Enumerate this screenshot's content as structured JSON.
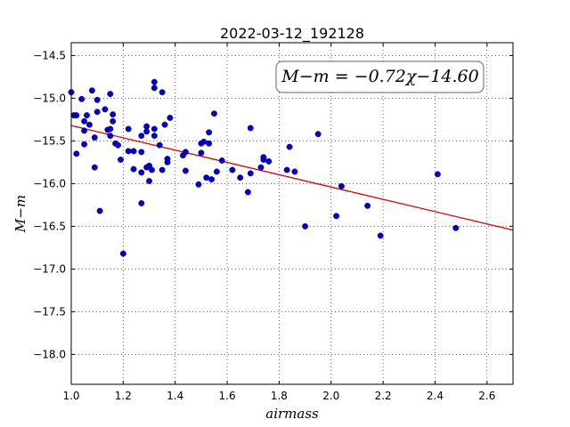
{
  "chart_data": {
    "type": "scatter",
    "title": "2022-03-12_192128",
    "xlabel": "airmass",
    "ylabel": "M−m",
    "xlim": [
      1.0,
      2.7
    ],
    "ylim": [
      -18.35,
      -14.35
    ],
    "y_inverted": true,
    "grid": true,
    "xticks": [
      1.0,
      1.2,
      1.4,
      1.6,
      1.8,
      2.0,
      2.2,
      2.4,
      2.6
    ],
    "xtick_labels": [
      "1.0",
      "1.2",
      "1.4",
      "1.6",
      "1.8",
      "2.0",
      "2.2",
      "2.4",
      "2.6"
    ],
    "yticks": [
      -14.5,
      -15.0,
      -15.5,
      -16.0,
      -16.5,
      -17.0,
      -17.5,
      -18.0
    ],
    "ytick_labels": [
      "−14.5",
      "−15.0",
      "−15.5",
      "−16.0",
      "−16.5",
      "−17.0",
      "−17.5",
      "−18.0"
    ],
    "annotation": "M−m = −0.72χ−14.60",
    "fit": {
      "slope": -0.72,
      "intercept": -14.6,
      "x_range": [
        1.0,
        2.7
      ],
      "color": "#dd0000"
    },
    "marker_color": "#0000cc",
    "points": [
      [
        1.0,
        -14.93
      ],
      [
        1.01,
        -15.2
      ],
      [
        1.02,
        -15.2
      ],
      [
        1.02,
        -15.65
      ],
      [
        1.04,
        -15.01
      ],
      [
        1.05,
        -15.27
      ],
      [
        1.05,
        -15.38
      ],
      [
        1.05,
        -15.54
      ],
      [
        1.06,
        -15.2
      ],
      [
        1.07,
        -15.31
      ],
      [
        1.08,
        -14.91
      ],
      [
        1.09,
        -15.81
      ],
      [
        1.09,
        -15.46
      ],
      [
        1.1,
        -15.02
      ],
      [
        1.1,
        -15.16
      ],
      [
        1.11,
        -16.32
      ],
      [
        1.13,
        -15.13
      ],
      [
        1.14,
        -15.37
      ],
      [
        1.15,
        -15.36
      ],
      [
        1.15,
        -15.44
      ],
      [
        1.15,
        -14.95
      ],
      [
        1.16,
        -15.19
      ],
      [
        1.16,
        -15.27
      ],
      [
        1.17,
        -15.53
      ],
      [
        1.18,
        -15.55
      ],
      [
        1.19,
        -15.72
      ],
      [
        1.2,
        -16.82
      ],
      [
        1.22,
        -15.36
      ],
      [
        1.22,
        -15.62
      ],
      [
        1.24,
        -15.62
      ],
      [
        1.24,
        -15.83
      ],
      [
        1.27,
        -15.44
      ],
      [
        1.27,
        -15.63
      ],
      [
        1.27,
        -15.87
      ],
      [
        1.27,
        -16.23
      ],
      [
        1.29,
        -15.33
      ],
      [
        1.29,
        -15.39
      ],
      [
        1.29,
        -15.81
      ],
      [
        1.3,
        -15.79
      ],
      [
        1.3,
        -15.97
      ],
      [
        1.31,
        -15.84
      ],
      [
        1.32,
        -14.81
      ],
      [
        1.32,
        -14.88
      ],
      [
        1.32,
        -15.36
      ],
      [
        1.32,
        -15.44
      ],
      [
        1.34,
        -15.55
      ],
      [
        1.35,
        -15.84
      ],
      [
        1.35,
        -14.93
      ],
      [
        1.36,
        -15.31
      ],
      [
        1.37,
        -15.75
      ],
      [
        1.37,
        -15.71
      ],
      [
        1.38,
        -15.23
      ],
      [
        1.43,
        -15.67
      ],
      [
        1.44,
        -15.63
      ],
      [
        1.44,
        -15.85
      ],
      [
        1.49,
        -16.01
      ],
      [
        1.5,
        -15.64
      ],
      [
        1.5,
        -15.53
      ],
      [
        1.51,
        -15.51
      ],
      [
        1.52,
        -15.93
      ],
      [
        1.53,
        -15.4
      ],
      [
        1.53,
        -15.53
      ],
      [
        1.54,
        -15.95
      ],
      [
        1.55,
        -15.18
      ],
      [
        1.56,
        -15.86
      ],
      [
        1.58,
        -15.73
      ],
      [
        1.62,
        -15.84
      ],
      [
        1.65,
        -15.93
      ],
      [
        1.68,
        -16.1
      ],
      [
        1.69,
        -15.88
      ],
      [
        1.69,
        -15.35
      ],
      [
        1.73,
        -15.81
      ],
      [
        1.74,
        -15.69
      ],
      [
        1.74,
        -15.72
      ],
      [
        1.76,
        -15.74
      ],
      [
        1.83,
        -15.84
      ],
      [
        1.84,
        -15.57
      ],
      [
        1.86,
        -15.86
      ],
      [
        1.9,
        -16.5
      ],
      [
        1.95,
        -15.42
      ],
      [
        2.02,
        -16.38
      ],
      [
        2.04,
        -16.03
      ],
      [
        2.14,
        -16.26
      ],
      [
        2.19,
        -16.61
      ],
      [
        2.41,
        -15.89
      ],
      [
        2.48,
        -16.52
      ]
    ]
  }
}
